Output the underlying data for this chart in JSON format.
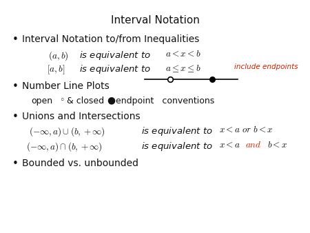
{
  "title": "Interval Notation",
  "title_fontsize": 11,
  "background_color": "#ffffff",
  "text_color": "#111111",
  "red_color": "#cc2200",
  "bullet1": "Interval Notation to/from Inequalities",
  "include_endpoints": "include endpoints",
  "bullet2": "Number Line Plots",
  "bullet3": "Unions and Intersections",
  "bullet4": "Bounded vs. unbounded",
  "main_fontsize": 10,
  "math_fontsize": 9.5,
  "small_fontsize": 7.5
}
